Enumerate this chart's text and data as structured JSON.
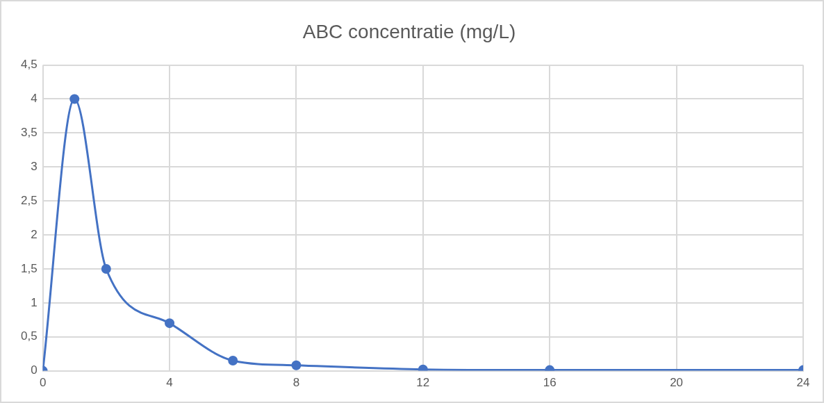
{
  "chart_data": {
    "type": "line",
    "title": "ABC concentratie (mg/L)",
    "x": [
      0,
      1,
      2,
      4,
      6,
      8,
      12,
      16,
      24
    ],
    "series": [
      {
        "color": "#4472c4",
        "values": [
          0,
          4,
          1.5,
          0.7,
          0.15,
          0.08,
          0.02,
          0.01,
          0.01
        ]
      }
    ],
    "xlim": [
      0,
      24
    ],
    "xticks": [
      0,
      4,
      8,
      12,
      16,
      20,
      24
    ],
    "ylim": [
      0,
      4.5
    ],
    "yticks": [
      0,
      {
        "value": 0.5,
        "label": "0,5"
      },
      1,
      {
        "value": 1.5,
        "label": "1,5"
      },
      2,
      {
        "value": 2.5,
        "label": "2,5"
      },
      3,
      {
        "value": 3.5,
        "label": "3,5"
      },
      4,
      {
        "value": 4.5,
        "label": "4,5"
      }
    ],
    "grid": true,
    "legend": false,
    "marker": "circle",
    "line_style": "solid"
  }
}
